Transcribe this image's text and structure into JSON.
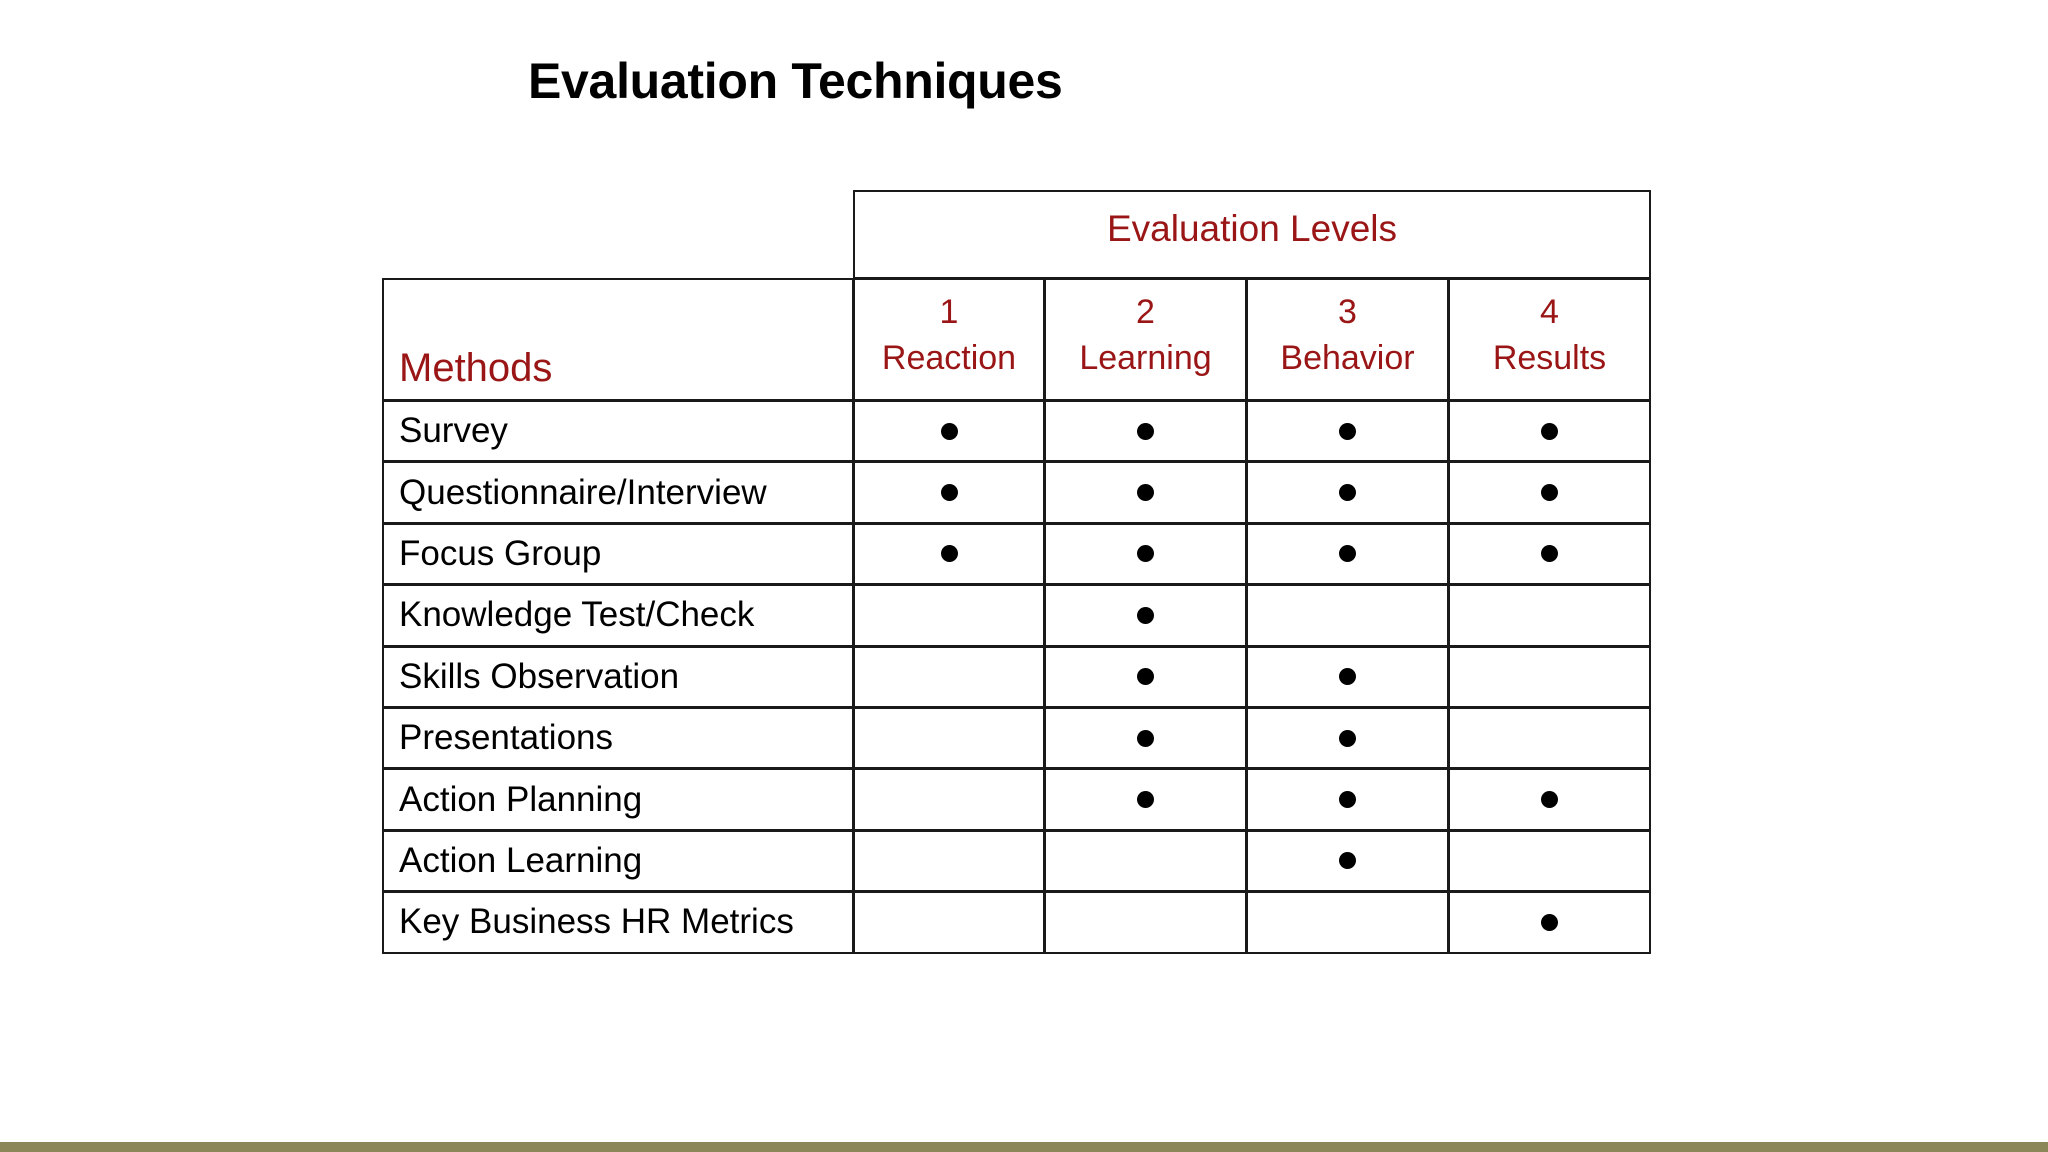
{
  "slide": {
    "title": "Evaluation Techniques"
  },
  "table": {
    "group_header": "Evaluation Levels",
    "methods_header": "Methods",
    "levels": [
      {
        "number": "1",
        "name": "Reaction"
      },
      {
        "number": "2",
        "name": "Learning"
      },
      {
        "number": "3",
        "name": "Behavior"
      },
      {
        "number": "4",
        "name": "Results"
      }
    ],
    "rows": [
      {
        "method": "Survey",
        "marks": [
          true,
          true,
          true,
          true
        ]
      },
      {
        "method": "Questionnaire/Interview",
        "marks": [
          true,
          true,
          true,
          true
        ]
      },
      {
        "method": "Focus Group",
        "marks": [
          true,
          true,
          true,
          true
        ]
      },
      {
        "method": "Knowledge Test/Check",
        "marks": [
          false,
          true,
          false,
          false
        ]
      },
      {
        "method": "Skills Observation",
        "marks": [
          false,
          true,
          true,
          false
        ]
      },
      {
        "method": "Presentations",
        "marks": [
          false,
          true,
          true,
          false
        ]
      },
      {
        "method": "Action Planning",
        "marks": [
          false,
          true,
          true,
          true
        ]
      },
      {
        "method": "Action Learning",
        "marks": [
          false,
          false,
          true,
          false
        ]
      },
      {
        "method": "Key Business HR Metrics",
        "marks": [
          false,
          false,
          false,
          true
        ]
      }
    ]
  },
  "colors": {
    "header_text": "#9a1515",
    "body_text": "#000000",
    "grid_lines": "#1a1a1a",
    "footer_bar": "#8c8759",
    "background": "#ffffff"
  }
}
